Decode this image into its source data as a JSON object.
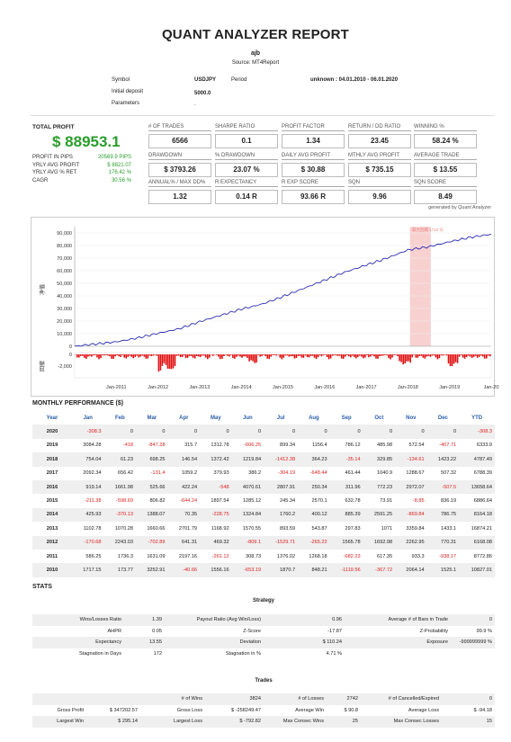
{
  "report": {
    "title": "QUANT ANALYZER REPORT",
    "name": "ajb",
    "source": "Source: MT4Report"
  },
  "meta": {
    "symbol_label": "Symbol",
    "symbol_value": "USDJPY",
    "period_label": "Period",
    "period_value": "unknown : 04.01.2010 - 06.01.2020",
    "deposit_label": "Initial deposit",
    "deposit_value": "5000.0",
    "params_label": "Parameters",
    "params_value": "."
  },
  "summary": {
    "total_profit_label": "TOTAL PROFIT",
    "total_profit": "$ 88953.1",
    "rows": [
      {
        "label": "PROFIT IN PIPS",
        "value": "20569.9 PIPS"
      },
      {
        "label": "YRLY AVG PROFIT",
        "value": "$ 8821.07"
      },
      {
        "label": "YRLY AVG % RET",
        "value": "176.42 %"
      },
      {
        "label": "CAGR",
        "value": "30.56 %"
      }
    ],
    "metrics": [
      {
        "label": "# OF TRADES",
        "value": "6566"
      },
      {
        "label": "SHARPE RATIO",
        "value": "0.1"
      },
      {
        "label": "PROFIT FACTOR",
        "value": "1.34"
      },
      {
        "label": "RETURN / DD RATIO",
        "value": "23.45"
      },
      {
        "label": "WINNING %",
        "value": "58.24 %"
      },
      {
        "label": "DRAWDOWN",
        "value": "$ 3793.26"
      },
      {
        "label": "% DRAWDOWN",
        "value": "23.07 %"
      },
      {
        "label": "DAILY AVG PROFIT",
        "value": "$ 30.88"
      },
      {
        "label": "MTHLY AVG PROFIT",
        "value": "$ 735.15"
      },
      {
        "label": "AVERAGE TRADE",
        "value": "$ 13.55"
      },
      {
        "label": "ANNUAL% / MAX DD%",
        "value": "1.32"
      },
      {
        "label": "R EXPECTANCY",
        "value": "0.14 R"
      },
      {
        "label": "R EXP SCORE",
        "value": "93.66 R"
      },
      {
        "label": "SQN",
        "value": "9.96"
      },
      {
        "label": "SQN SCORE",
        "value": "8.49"
      }
    ],
    "generated_by": "generated by Quant Analyzer"
  },
  "chart_data": {
    "type": "area",
    "title": "",
    "ylabel_top": "净值",
    "ylabel_bottom": "回撤",
    "annotation": "最大回撤 1732 天",
    "y_ticks": [
      "90,000",
      "80,000",
      "70,000",
      "60,000",
      "50,000",
      "40,000",
      "30,000",
      "20,000",
      "10,000",
      "0"
    ],
    "dd_ticks": [
      "0",
      "-2,000"
    ],
    "x_ticks": [
      "Jan-2011",
      "Jan-2012",
      "Jan-2013",
      "Jan-2014",
      "Jan-2015",
      "Jan-2016",
      "Jan-2017",
      "Jan-2018",
      "Jan-2019",
      "Jan-20"
    ],
    "equity_series": {
      "x": [
        2010.0,
        2010.5,
        2011.0,
        2011.5,
        2012.0,
        2012.5,
        2013.0,
        2013.5,
        2014.0,
        2014.5,
        2015.0,
        2015.5,
        2016.0,
        2016.5,
        2017.0,
        2017.5,
        2018.0,
        2018.5,
        2019.0,
        2019.5,
        2020.0
      ],
      "y": [
        0,
        1800,
        3500,
        6500,
        10300,
        13800,
        19500,
        24500,
        29500,
        33500,
        39500,
        46000,
        52500,
        59000,
        64500,
        70000,
        76500,
        79000,
        83000,
        86500,
        89000
      ]
    },
    "ylim": [
      0,
      95000
    ],
    "xlim": [
      2010.0,
      2020.0
    ],
    "colors": {
      "equity": "#2b2bb0",
      "drawdown": "#e01010",
      "highlight": "#f7d0d0"
    }
  },
  "monthly": {
    "title": "MONTHLY PERFORMANCE ($)",
    "headers": [
      "Year",
      "Jan",
      "Feb",
      "Mar",
      "Apr",
      "May",
      "Jun",
      "Jul",
      "Aug",
      "Sep",
      "Oct",
      "Nov",
      "Dec",
      "YTD"
    ],
    "rows": [
      [
        "2020",
        "-308.3",
        "0",
        "0",
        "0",
        "0",
        "0",
        "0",
        "0",
        "0",
        "0",
        "0",
        "0",
        "-308.3"
      ],
      [
        "2019",
        "3084.28",
        "-418",
        "-847.28",
        "315.7",
        "1312.78",
        "-606.25",
        "899.34",
        "1156.4",
        "786.12",
        "485.98",
        "572.54",
        "-407.71",
        "6333.9"
      ],
      [
        "2018",
        "754.04",
        "61.23",
        "698.25",
        "146.54",
        "1372.42",
        "1219.84",
        "-1412.38",
        "364.23",
        "-35.14",
        "329.85",
        "-134.61",
        "1423.22",
        "4787.49"
      ],
      [
        "2017",
        "2092.34",
        "656.42",
        "-131.4",
        "1059.2",
        "379.93",
        "386.2",
        "-304.19",
        "-648.44",
        "461.44",
        "1040.9",
        "1288.67",
        "507.32",
        "6788.39"
      ],
      [
        "2016",
        "919.14",
        "1661.98",
        "525.66",
        "422.24",
        "-548",
        "4070.61",
        "2807.91",
        "250.34",
        "311.96",
        "772.23",
        "2972.07",
        "-507.5",
        "13658.64"
      ],
      [
        "2015",
        "-211.38",
        "-598.69",
        "806.82",
        "-644.24",
        "1897.54",
        "1285.12",
        "245.34",
        "2570.1",
        "632.78",
        "73.91",
        "-8.85",
        "836.19",
        "6886.64"
      ],
      [
        "2014",
        "425.93",
        "-370.13",
        "1388.07",
        "70.35",
        "-228.75",
        "1324.84",
        "1760.2",
        "400.12",
        "885.39",
        "2591.25",
        "-869.84",
        "786.75",
        "8164.18"
      ],
      [
        "2013",
        "1102.78",
        "1070.28",
        "1660.66",
        "2701.79",
        "1168.92",
        "1570.55",
        "893.59",
        "543.87",
        "297.83",
        "1071",
        "3359.84",
        "1433.1",
        "16874.21"
      ],
      [
        "2012",
        "-170.68",
        "2243.03",
        "-702.89",
        "641.31",
        "469.32",
        "-809.1",
        "-1529.71",
        "-265.22",
        "1565.78",
        "1692.98",
        "2262.95",
        "770.31",
        "6168.08"
      ],
      [
        "2011",
        "586.25",
        "1736.3",
        "1631.09",
        "2197.16",
        "-261.12",
        "308.73",
        "1376.02",
        "1268.18",
        "-682.23",
        "617.35",
        "933.3",
        "-938.17",
        "8772.86"
      ],
      [
        "2010",
        "1717.15",
        "173.77",
        "3252.91",
        "-40.66",
        "1556.16",
        "-653.19",
        "1870.7",
        "848.21",
        "-1119.56",
        "-367.72",
        "2064.14",
        "1525.1",
        "10827.01"
      ]
    ]
  },
  "stats": {
    "title": "STATS",
    "strategy_title": "Strategy",
    "strategy_rows": [
      [
        "Wins/Losses Ratio",
        "1.39",
        "Payout Ratio (Avg Win/Loss)",
        "0.96",
        "Average # of Bars in Trade",
        "0"
      ],
      [
        "AHPR",
        "0.05",
        "Z-Score",
        "-17.87",
        "Z-Probability",
        "99.9 %"
      ],
      [
        "Expectancy",
        "13.55",
        "Deviation",
        "$ 110.24",
        "Exposure",
        "-999999999 %"
      ],
      [
        "Stagnation in Days",
        "172",
        "Stagnation in %",
        "4.71 %",
        "",
        ""
      ]
    ],
    "trades_title": "Trades",
    "trades_rows": [
      [
        "",
        "",
        "# of Wins",
        "3824",
        "# of Losses",
        "2742",
        "# of Cancelled/Expired",
        "0"
      ],
      [
        "Gross Profit",
        "$ 347202.57",
        "Gross Loss",
        "$ -258249.47",
        "Average Win",
        "$ 90.8",
        "Average Loss",
        "$ -94.18"
      ],
      [
        "Largest Win",
        "$ 295.14",
        "Largest Loss",
        "$ -792.82",
        "Max Consec Wins",
        "25",
        "Max Consec Losses",
        "15"
      ]
    ]
  }
}
